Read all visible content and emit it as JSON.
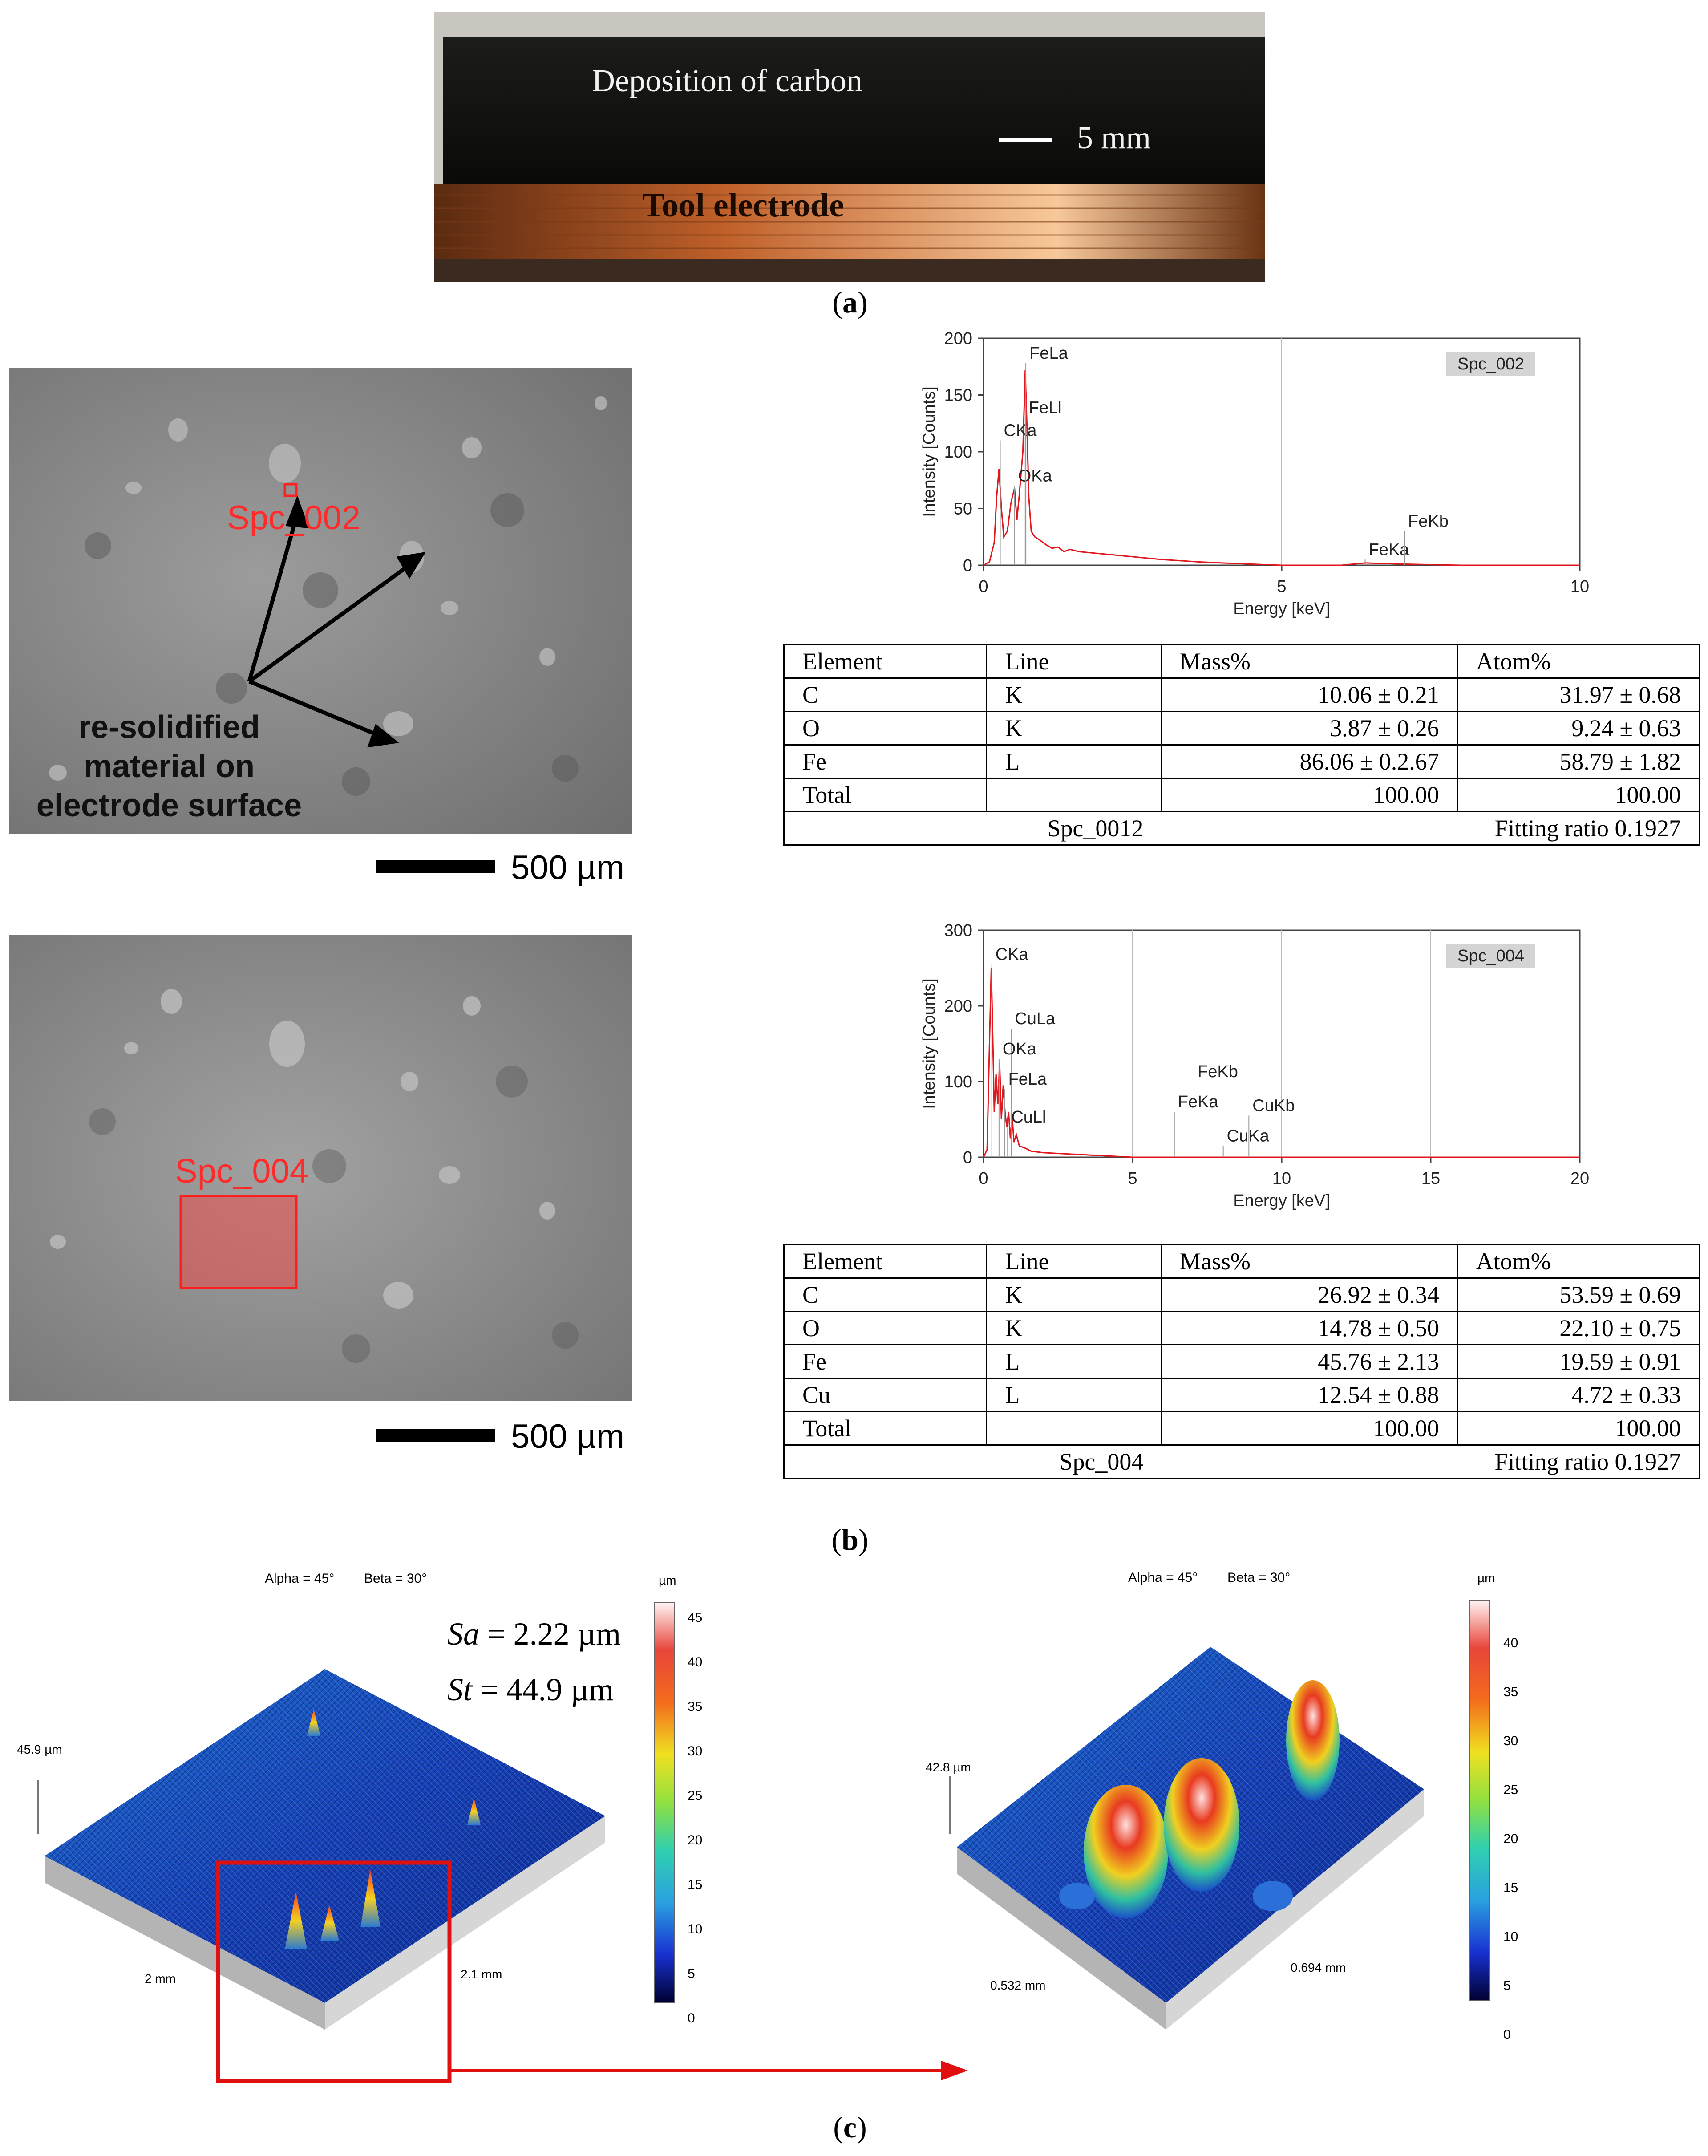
{
  "panel_a": {
    "label_deposition": "Deposition of carbon",
    "label_scale": "5 mm",
    "label_tool": "Tool electrode",
    "caption": "a"
  },
  "panel_b": {
    "caption": "b",
    "sem1": {
      "spot_label": "Spc_002",
      "annotation": [
        "re-solidified",
        "material on",
        "electrode surface"
      ],
      "scale": "500 µm"
    },
    "sem2": {
      "spot_label": "Spc_004",
      "scale": "500 µm"
    },
    "chart_data": [
      {
        "type": "line",
        "legend": "Spc_002",
        "xlabel": "Energy [keV]",
        "ylabel": "Intensity [Counts]",
        "xlim": [
          0,
          10
        ],
        "ylim": [
          0,
          200
        ],
        "xticks": [
          0,
          5,
          10
        ],
        "yticks": [
          0,
          50,
          100,
          150,
          200
        ],
        "color": "#e0181d",
        "peaks": [
          {
            "label": "CKa",
            "x": 0.28,
            "y": 110
          },
          {
            "label": "OKa",
            "x": 0.52,
            "y": 70
          },
          {
            "label": "FeLl",
            "x": 0.7,
            "y": 130
          },
          {
            "label": "FeLa",
            "x": 0.71,
            "y": 178
          },
          {
            "label": "FeKa",
            "x": 6.4,
            "y": 5
          },
          {
            "label": "FeKb",
            "x": 7.06,
            "y": 30
          }
        ],
        "spectrum": [
          [
            0.0,
            0
          ],
          [
            0.1,
            3
          ],
          [
            0.18,
            20
          ],
          [
            0.22,
            60
          ],
          [
            0.26,
            85
          ],
          [
            0.3,
            50
          ],
          [
            0.34,
            25
          ],
          [
            0.4,
            30
          ],
          [
            0.46,
            55
          ],
          [
            0.52,
            68
          ],
          [
            0.56,
            40
          ],
          [
            0.6,
            62
          ],
          [
            0.66,
            100
          ],
          [
            0.7,
            172
          ],
          [
            0.73,
            120
          ],
          [
            0.76,
            60
          ],
          [
            0.8,
            30
          ],
          [
            0.86,
            25
          ],
          [
            0.95,
            22
          ],
          [
            1.05,
            18
          ],
          [
            1.15,
            15
          ],
          [
            1.25,
            16
          ],
          [
            1.35,
            12
          ],
          [
            1.45,
            14
          ],
          [
            1.6,
            12
          ],
          [
            1.8,
            11
          ],
          [
            2.0,
            10
          ],
          [
            2.2,
            9
          ],
          [
            2.4,
            8
          ],
          [
            2.6,
            7
          ],
          [
            2.8,
            6
          ],
          [
            3.0,
            5
          ],
          [
            3.3,
            4
          ],
          [
            3.6,
            3
          ],
          [
            4.0,
            2
          ],
          [
            4.5,
            1
          ],
          [
            5.0,
            0
          ],
          [
            6.0,
            0
          ],
          [
            6.4,
            2
          ],
          [
            7.06,
            1
          ],
          [
            8.0,
            0
          ],
          [
            10.0,
            0
          ]
        ]
      },
      {
        "type": "line",
        "legend": "Spc_004",
        "xlabel": "Energy [keV]",
        "ylabel": "Intensity [Counts]",
        "xlim": [
          0,
          20
        ],
        "ylim": [
          0,
          300
        ],
        "xticks": [
          0,
          5,
          10,
          15,
          20
        ],
        "yticks": [
          0,
          100,
          200,
          300
        ],
        "color": "#e0181d",
        "peaks": [
          {
            "label": "CKa",
            "x": 0.28,
            "y": 255
          },
          {
            "label": "CuLa",
            "x": 0.93,
            "y": 170
          },
          {
            "label": "OKa",
            "x": 0.52,
            "y": 130
          },
          {
            "label": "FeLa",
            "x": 0.71,
            "y": 90
          },
          {
            "label": "CuLl",
            "x": 0.81,
            "y": 40
          },
          {
            "label": "FeKa",
            "x": 6.4,
            "y": 60
          },
          {
            "label": "FeKb",
            "x": 7.06,
            "y": 100
          },
          {
            "label": "CuKa",
            "x": 8.04,
            "y": 15
          },
          {
            "label": "CuKb",
            "x": 8.9,
            "y": 55
          }
        ],
        "spectrum": [
          [
            0.0,
            0
          ],
          [
            0.12,
            10
          ],
          [
            0.2,
            150
          ],
          [
            0.26,
            250
          ],
          [
            0.3,
            180
          ],
          [
            0.36,
            60
          ],
          [
            0.42,
            110
          ],
          [
            0.48,
            70
          ],
          [
            0.54,
            125
          ],
          [
            0.6,
            50
          ],
          [
            0.66,
            95
          ],
          [
            0.72,
            60
          ],
          [
            0.78,
            40
          ],
          [
            0.84,
            60
          ],
          [
            0.9,
            25
          ],
          [
            0.96,
            55
          ],
          [
            1.02,
            20
          ],
          [
            1.1,
            30
          ],
          [
            1.2,
            15
          ],
          [
            1.4,
            12
          ],
          [
            1.6,
            8
          ],
          [
            1.8,
            7
          ],
          [
            2.0,
            6
          ],
          [
            2.5,
            5
          ],
          [
            3.0,
            4
          ],
          [
            3.5,
            3
          ],
          [
            4.0,
            2
          ],
          [
            4.5,
            1
          ],
          [
            5.0,
            0
          ],
          [
            20.0,
            0
          ]
        ]
      }
    ],
    "table1": {
      "headers": [
        "Element",
        "Line",
        "Mass%",
        "Atom%"
      ],
      "rows": [
        [
          "C",
          "K",
          "10.06 ± 0.21",
          "31.97 ± 0.68"
        ],
        [
          "O",
          "K",
          "3.87 ± 0.26",
          "9.24 ± 0.63"
        ],
        [
          "Fe",
          "L",
          "86.06 ± 0.2.67",
          "58.79 ± 1.82"
        ],
        [
          "Total",
          "",
          "100.00",
          "100.00"
        ]
      ],
      "footer_left": "Spc_0012",
      "footer_right": "Fitting ratio 0.1927"
    },
    "table2": {
      "headers": [
        "Element",
        "Line",
        "Mass%",
        "Atom%"
      ],
      "rows": [
        [
          "C",
          "K",
          "26.92 ± 0.34",
          "53.59 ± 0.69"
        ],
        [
          "O",
          "K",
          "14.78 ± 0.50",
          "22.10 ± 0.75"
        ],
        [
          "Fe",
          "L",
          "45.76 ± 2.13",
          "19.59 ± 0.91"
        ],
        [
          "Cu",
          "L",
          "12.54 ± 0.88",
          "4.72 ± 0.33"
        ],
        [
          "Total",
          "",
          "100.00",
          "100.00"
        ]
      ],
      "footer_left": "Spc_004",
      "footer_right": "Fitting ratio 0.1927"
    }
  },
  "panel_c": {
    "caption": "c",
    "left": {
      "angles": "Alpha = 45°        Beta = 30°",
      "sa_label": "Sa",
      "sa_value": " = 2.22 µm",
      "st_label": "St",
      "st_value": " = 44.9 µm",
      "height_label": "45.9 µm",
      "dim_x": "2 mm",
      "dim_y": "2.1 mm",
      "unit": "µm",
      "colorbar_ticks": [
        "45",
        "40",
        "35",
        "30",
        "25",
        "20",
        "15",
        "10",
        "5",
        "0"
      ]
    },
    "right": {
      "angles": "Alpha = 45°        Beta = 30°",
      "height_label": "42.8 µm",
      "dim_x": "0.532 mm",
      "dim_y": "0.694 mm",
      "unit": "µm",
      "colorbar_ticks": [
        "40",
        "35",
        "30",
        "25",
        "20",
        "15",
        "10",
        "5",
        "0"
      ]
    }
  }
}
